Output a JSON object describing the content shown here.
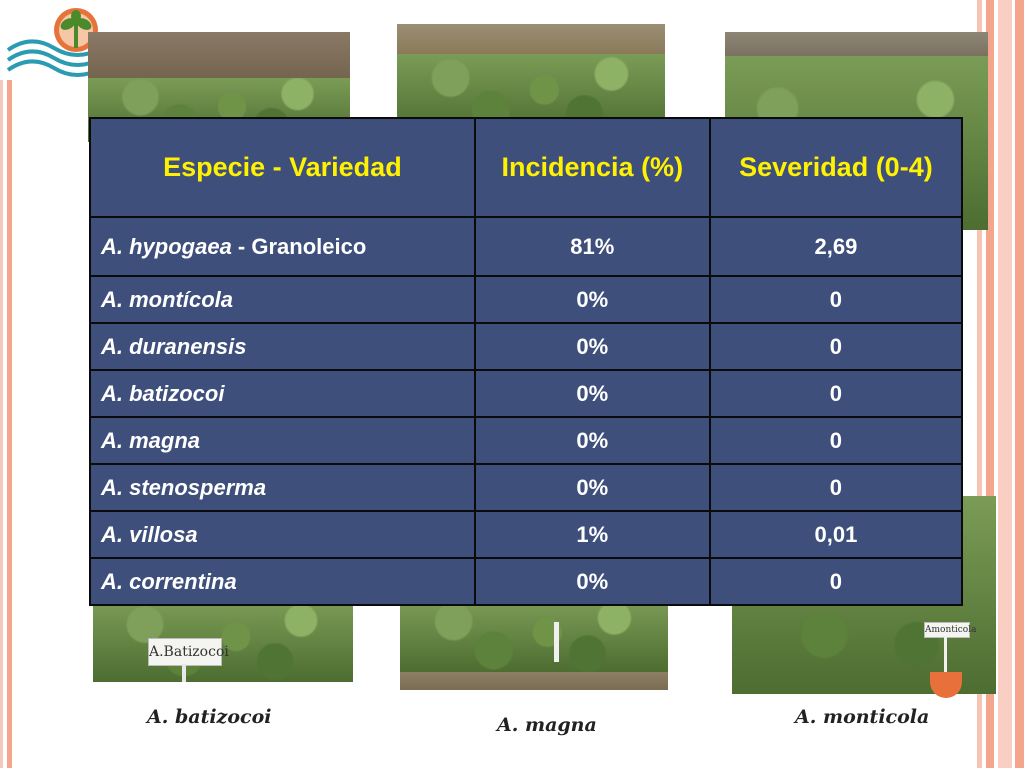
{
  "table": {
    "headers": [
      "Especie - Variedad",
      "Incidencia (%)",
      "Severidad (0-4)"
    ],
    "rows": [
      {
        "species": "A. hypogaea",
        "suffix": " - Granoleico",
        "incidence": "81%",
        "severity": "2,69"
      },
      {
        "species": "A. montícola",
        "incidence": "0%",
        "severity": "0"
      },
      {
        "species": "A. duranensis",
        "incidence": "0%",
        "severity": "0"
      },
      {
        "species": "A. batizocoi",
        "incidence": "0%",
        "severity": "0"
      },
      {
        "species": "A. magna",
        "incidence": "0%",
        "severity": "0"
      },
      {
        "species": "A. stenosperma",
        "incidence": "0%",
        "severity": "0"
      },
      {
        "species": "A. villosa",
        "incidence": "1%",
        "severity": "0,01"
      },
      {
        "species": "A. correntina",
        "incidence": "0%",
        "severity": "0"
      }
    ]
  },
  "signs": {
    "batizocoi": "A.Batizocoi",
    "monticola": "Amonticola"
  },
  "captions": {
    "batizocoi": "A. batizocoi",
    "magna": "A. magna",
    "monticola": "A. monticola"
  },
  "colors": {
    "table_bg": "#3e4f7c",
    "header_text": "#fff200",
    "cell_text": "#ffffff",
    "frame_accent": "#f4a58e"
  },
  "icons": [
    "plant-logo-icon"
  ]
}
